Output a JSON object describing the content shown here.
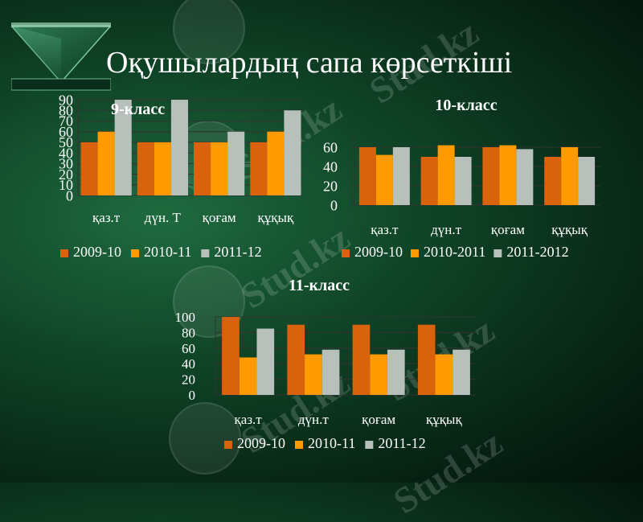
{
  "slide": {
    "title": "Оқушылардың сапа көрсеткіші",
    "watermark_text": "Stud.kz"
  },
  "colors": {
    "series1": "#d9620c",
    "series2": "#ff9b00",
    "series3": "#b8c0bc",
    "text": "#ffffff",
    "grid": "#333333"
  },
  "chart_data": [
    {
      "type": "bar",
      "title": "9-класс",
      "categories": [
        "қаз.т",
        "дүн. Т",
        "қоғам",
        "құқық"
      ],
      "series": [
        {
          "name": "2009-10",
          "values": [
            50,
            50,
            50,
            50
          ]
        },
        {
          "name": "2010-11",
          "values": [
            60,
            50,
            50,
            60
          ]
        },
        {
          "name": "2011-12",
          "values": [
            90,
            90,
            60,
            80
          ]
        }
      ],
      "ylim": [
        0,
        90
      ],
      "yticks": [
        0,
        10,
        20,
        30,
        40,
        50,
        60,
        70,
        80,
        90
      ],
      "grid": true,
      "legend": "bottom"
    },
    {
      "type": "bar",
      "title": "10-класс",
      "categories": [
        "қаз.т",
        "дүн.т",
        "қоғам",
        "құқық"
      ],
      "series": [
        {
          "name": "2009-10",
          "values": [
            60,
            50,
            60,
            50
          ]
        },
        {
          "name": "2010-2011",
          "values": [
            52,
            62,
            62,
            60
          ]
        },
        {
          "name": "2011-2012",
          "values": [
            60,
            50,
            58,
            50
          ]
        }
      ],
      "ylim": [
        0,
        70
      ],
      "yticks": [
        0,
        20,
        40,
        60
      ],
      "grid": true,
      "legend": "bottom"
    },
    {
      "type": "bar",
      "title": "11-класс",
      "categories": [
        "қаз.т",
        "дүн.т",
        "қоғам",
        "құқық"
      ],
      "series": [
        {
          "name": "2009-10",
          "values": [
            100,
            90,
            90,
            90
          ]
        },
        {
          "name": "2010-11",
          "values": [
            48,
            52,
            52,
            52
          ]
        },
        {
          "name": "2011-12",
          "values": [
            85,
            58,
            58,
            58
          ]
        }
      ],
      "ylim": [
        0,
        100
      ],
      "yticks": [
        0,
        20,
        40,
        60,
        80,
        100
      ],
      "grid": true,
      "legend": "bottom"
    }
  ]
}
